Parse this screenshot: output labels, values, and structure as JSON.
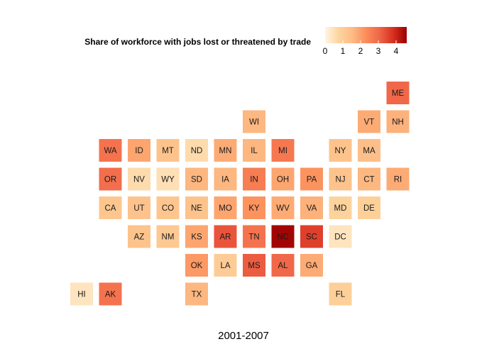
{
  "chart_data": {
    "type": "heatmap",
    "subtype": "state tile grid map",
    "legend_title": "Share of workforce with jobs lost or threatened by trade",
    "legend_ticks": [
      "0",
      "1",
      "2",
      "3",
      "4"
    ],
    "legend_range": [
      0,
      4.6
    ],
    "legend_placement": "top-right",
    "caption": "2001-2007",
    "color_scale": [
      "#fff5e3",
      "#fdd49e",
      "#fdbb84",
      "#fc8d59",
      "#ef6548",
      "#d7301f",
      "#990000"
    ],
    "label_color": "#1a1a1a",
    "grid": false,
    "tiles": [
      {
        "state": "ME",
        "col": 11,
        "row": 0,
        "value": 3.0
      },
      {
        "state": "WI",
        "col": 6,
        "row": 1,
        "value": 1.6
      },
      {
        "state": "VT",
        "col": 10,
        "row": 1,
        "value": 1.8
      },
      {
        "state": "NH",
        "col": 11,
        "row": 1,
        "value": 1.7
      },
      {
        "state": "WA",
        "col": 1,
        "row": 2,
        "value": 2.8
      },
      {
        "state": "ID",
        "col": 2,
        "row": 2,
        "value": 1.9
      },
      {
        "state": "MT",
        "col": 3,
        "row": 2,
        "value": 1.3
      },
      {
        "state": "ND",
        "col": 4,
        "row": 2,
        "value": 0.6
      },
      {
        "state": "MN",
        "col": 5,
        "row": 2,
        "value": 1.8
      },
      {
        "state": "IL",
        "col": 6,
        "row": 2,
        "value": 1.6
      },
      {
        "state": "MI",
        "col": 7,
        "row": 2,
        "value": 2.7
      },
      {
        "state": "NY",
        "col": 9,
        "row": 2,
        "value": 1.3
      },
      {
        "state": "MA",
        "col": 10,
        "row": 2,
        "value": 1.4
      },
      {
        "state": "OR",
        "col": 1,
        "row": 3,
        "value": 2.9
      },
      {
        "state": "NV",
        "col": 2,
        "row": 3,
        "value": 0.6
      },
      {
        "state": "WY",
        "col": 3,
        "row": 3,
        "value": 0.5
      },
      {
        "state": "SD",
        "col": 4,
        "row": 3,
        "value": 1.6
      },
      {
        "state": "IA",
        "col": 5,
        "row": 3,
        "value": 1.6
      },
      {
        "state": "IN",
        "col": 6,
        "row": 3,
        "value": 2.6
      },
      {
        "state": "OH",
        "col": 7,
        "row": 3,
        "value": 1.9
      },
      {
        "state": "PA",
        "col": 8,
        "row": 3,
        "value": 2.2
      },
      {
        "state": "NJ",
        "col": 9,
        "row": 3,
        "value": 1.3
      },
      {
        "state": "CT",
        "col": 10,
        "row": 3,
        "value": 1.6
      },
      {
        "state": "RI",
        "col": 11,
        "row": 3,
        "value": 1.8
      },
      {
        "state": "CA",
        "col": 1,
        "row": 4,
        "value": 1.2
      },
      {
        "state": "UT",
        "col": 2,
        "row": 4,
        "value": 1.3
      },
      {
        "state": "CO",
        "col": 3,
        "row": 4,
        "value": 1.2
      },
      {
        "state": "NE",
        "col": 4,
        "row": 4,
        "value": 1.3
      },
      {
        "state": "MO",
        "col": 5,
        "row": 4,
        "value": 1.9
      },
      {
        "state": "KY",
        "col": 6,
        "row": 4,
        "value": 2.2
      },
      {
        "state": "WV",
        "col": 7,
        "row": 4,
        "value": 1.8
      },
      {
        "state": "VA",
        "col": 8,
        "row": 4,
        "value": 1.7
      },
      {
        "state": "MD",
        "col": 9,
        "row": 4,
        "value": 0.8
      },
      {
        "state": "DE",
        "col": 10,
        "row": 4,
        "value": 0.9
      },
      {
        "state": "AZ",
        "col": 2,
        "row": 5,
        "value": 1.3
      },
      {
        "state": "NM",
        "col": 3,
        "row": 5,
        "value": 1.1
      },
      {
        "state": "KS",
        "col": 4,
        "row": 5,
        "value": 1.9
      },
      {
        "state": "AR",
        "col": 5,
        "row": 5,
        "value": 3.3
      },
      {
        "state": "TN",
        "col": 6,
        "row": 5,
        "value": 2.8
      },
      {
        "state": "NC",
        "col": 7,
        "row": 5,
        "value": 4.5
      },
      {
        "state": "SC",
        "col": 8,
        "row": 5,
        "value": 3.6
      },
      {
        "state": "DC",
        "col": 9,
        "row": 5,
        "value": 0.4
      },
      {
        "state": "OK",
        "col": 4,
        "row": 6,
        "value": 2.1
      },
      {
        "state": "LA",
        "col": 5,
        "row": 6,
        "value": 1.0
      },
      {
        "state": "MS",
        "col": 6,
        "row": 6,
        "value": 3.2
      },
      {
        "state": "AL",
        "col": 7,
        "row": 6,
        "value": 3.0
      },
      {
        "state": "GA",
        "col": 8,
        "row": 6,
        "value": 1.8
      },
      {
        "state": "HI",
        "col": 0,
        "row": 7,
        "value": 0.4
      },
      {
        "state": "AK",
        "col": 1,
        "row": 7,
        "value": 2.8
      },
      {
        "state": "TX",
        "col": 4,
        "row": 7,
        "value": 1.6
      },
      {
        "state": "FL",
        "col": 9,
        "row": 7,
        "value": 0.9
      }
    ]
  }
}
